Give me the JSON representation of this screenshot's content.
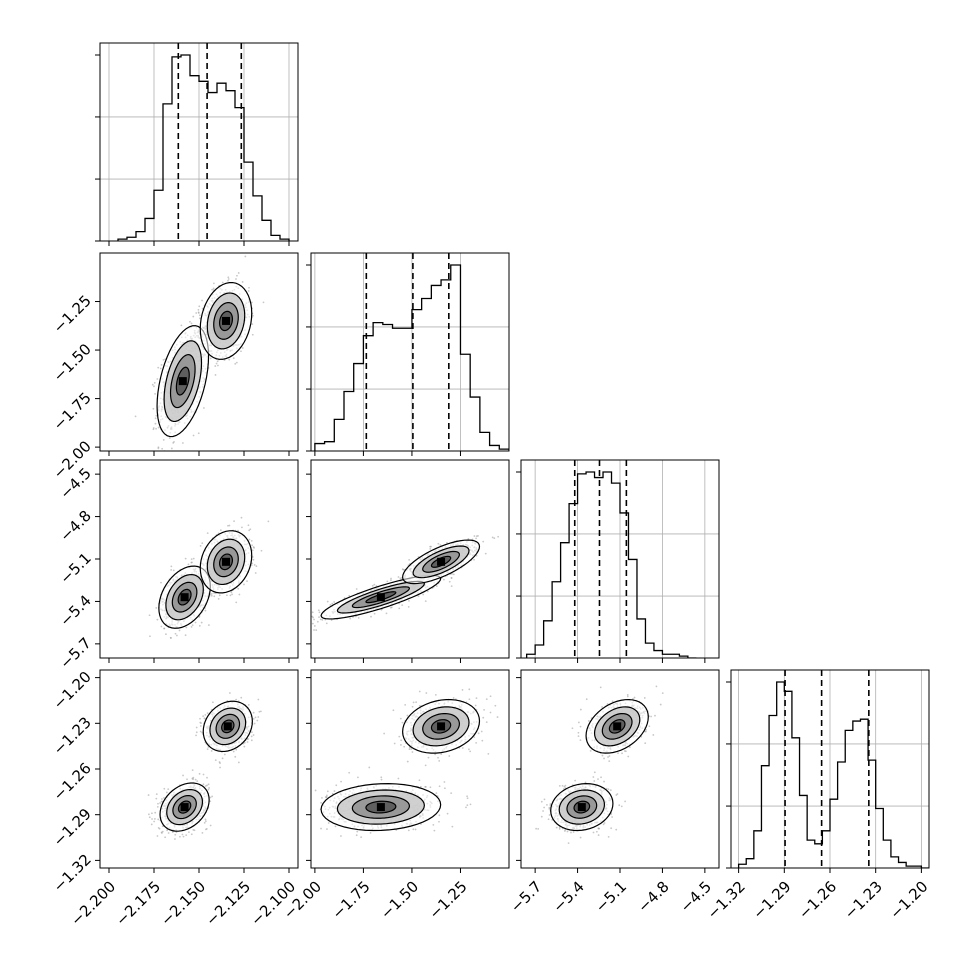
{
  "chart_data": {
    "type": "corner",
    "title": "",
    "grid": true,
    "parameters": [
      {
        "key": "p0",
        "range": [
          -2.205,
          -2.095
        ],
        "ticks": [
          -2.2,
          -2.175,
          -2.15,
          -2.125,
          -2.1
        ],
        "tick_labels": [
          "−2.200",
          "−2.175",
          "−2.150",
          "−2.125",
          "−2.100"
        ],
        "quantiles": [
          -2.1615,
          -2.1455,
          -2.1265
        ],
        "hist_edges": [
          -2.195,
          -2.19,
          -2.185,
          -2.18,
          -2.175,
          -2.17,
          -2.165,
          -2.16,
          -2.155,
          -2.15,
          -2.145,
          -2.14,
          -2.135,
          -2.13,
          -2.125,
          -2.12,
          -2.115,
          -2.11,
          -2.105,
          -2.1
        ],
        "hist_counts": [
          0.01,
          0.02,
          0.05,
          0.12,
          0.27,
          0.73,
          0.98,
          0.99,
          0.88,
          0.85,
          0.79,
          0.84,
          0.8,
          0.71,
          0.42,
          0.24,
          0.11,
          0.03,
          0.01
        ]
      },
      {
        "key": "p1",
        "range": [
          -2.02,
          -1.0
        ],
        "ticks": [
          -2.0,
          -1.75,
          -1.5,
          -1.25
        ],
        "tick_labels": [
          "−2.00",
          "−1.75",
          "−1.50",
          "−1.25"
        ],
        "quantiles": [
          -1.735,
          -1.495,
          -1.31
        ],
        "hist_edges": [
          -2.0,
          -1.95,
          -1.9,
          -1.85,
          -1.8,
          -1.75,
          -1.7,
          -1.65,
          -1.6,
          -1.55,
          -1.5,
          -1.45,
          -1.4,
          -1.35,
          -1.3,
          -1.25,
          -1.2,
          -1.15,
          -1.1,
          -1.05,
          -1.0
        ],
        "hist_counts": [
          0.04,
          0.05,
          0.17,
          0.32,
          0.47,
          0.62,
          0.69,
          0.68,
          0.66,
          0.66,
          0.76,
          0.82,
          0.89,
          0.92,
          1.0,
          0.52,
          0.29,
          0.1,
          0.03,
          0.01
        ]
      },
      {
        "key": "p2",
        "range": [
          -5.8,
          -4.4
        ],
        "ticks": [
          -5.7,
          -5.4,
          -5.1,
          -4.8,
          -4.5
        ],
        "tick_labels": [
          "−5.7",
          "−5.4",
          "−5.1",
          "−4.8",
          "−4.5"
        ],
        "quantiles": [
          -5.42,
          -5.245,
          -5.055
        ],
        "hist_edges": [
          -5.76,
          -5.7,
          -5.64,
          -5.58,
          -5.52,
          -5.46,
          -5.4,
          -5.34,
          -5.28,
          -5.22,
          -5.16,
          -5.1,
          -5.04,
          -4.98,
          -4.92,
          -4.86,
          -4.8,
          -4.74,
          -4.68,
          -4.62,
          -4.56
        ],
        "hist_counts": [
          0.02,
          0.07,
          0.2,
          0.41,
          0.62,
          0.83,
          0.99,
          1.0,
          0.97,
          1.0,
          0.94,
          0.78,
          0.53,
          0.21,
          0.08,
          0.04,
          0.02,
          0.02,
          0.01,
          0.0
        ]
      },
      {
        "key": "p3",
        "range": [
          -1.325,
          -1.195
        ],
        "ticks": [
          -1.32,
          -1.29,
          -1.26,
          -1.23,
          -1.2
        ],
        "tick_labels": [
          "−1.32",
          "−1.29",
          "−1.26",
          "−1.23",
          "−1.20"
        ],
        "quantiles": [
          -1.2895,
          -1.2655,
          -1.2345
        ],
        "hist_edges": [
          -1.32,
          -1.315,
          -1.31,
          -1.305,
          -1.3,
          -1.295,
          -1.29,
          -1.285,
          -1.28,
          -1.275,
          -1.27,
          -1.265,
          -1.26,
          -1.255,
          -1.25,
          -1.245,
          -1.24,
          -1.235,
          -1.23,
          -1.225,
          -1.22,
          -1.215,
          -1.21,
          -1.205,
          -1.2,
          -1.195
        ],
        "hist_counts": [
          0.02,
          0.05,
          0.2,
          0.55,
          0.82,
          1.0,
          0.95,
          0.7,
          0.39,
          0.15,
          0.13,
          0.2,
          0.37,
          0.57,
          0.74,
          0.79,
          0.8,
          0.58,
          0.32,
          0.15,
          0.06,
          0.03,
          0.01,
          0.01,
          0.0
        ]
      }
    ],
    "pairs": [
      {
        "row": 1,
        "col": 0,
        "modes": [
          {
            "x": [
              -2.159,
              0.0065
            ],
            "y": [
              -1.66,
              0.13
            ],
            "rho": 0.45,
            "w": 0.55
          },
          {
            "x": [
              -2.135,
              0.0065
            ],
            "y": [
              -1.35,
              0.09
            ],
            "rho": 0.2,
            "w": 0.45
          }
        ]
      },
      {
        "row": 2,
        "col": 0,
        "modes": [
          {
            "x": [
              -2.158,
              0.0065
            ],
            "y": [
              -5.37,
              0.1
            ],
            "rho": 0.35,
            "w": 0.5
          },
          {
            "x": [
              -2.135,
              0.0065
            ],
            "y": [
              -5.12,
              0.1
            ],
            "rho": 0.2,
            "w": 0.5
          }
        ]
      },
      {
        "row": 2,
        "col": 1,
        "modes": [
          {
            "x": [
              -1.66,
              0.14
            ],
            "y": [
              -5.37,
              0.07
            ],
            "rho": 0.85,
            "w": 0.5
          },
          {
            "x": [
              -1.35,
              0.09
            ],
            "y": [
              -5.12,
              0.07
            ],
            "rho": 0.7,
            "w": 0.5
          }
        ]
      },
      {
        "row": 3,
        "col": 0,
        "modes": [
          {
            "x": [
              -2.158,
              0.0062
            ],
            "y": [
              -1.285,
              0.0072
            ],
            "rho": 0.3,
            "w": 0.55
          },
          {
            "x": [
              -2.134,
              0.0062
            ],
            "y": [
              -1.232,
              0.0075
            ],
            "rho": 0.2,
            "w": 0.45
          }
        ]
      },
      {
        "row": 3,
        "col": 1,
        "modes": [
          {
            "x": [
              -1.66,
              0.14
            ],
            "y": [
              -1.285,
              0.007
            ],
            "rho": 0.1,
            "w": 0.55
          },
          {
            "x": [
              -1.35,
              0.09
            ],
            "y": [
              -1.232,
              0.008
            ],
            "rho": 0.2,
            "w": 0.45
          }
        ]
      },
      {
        "row": 3,
        "col": 2,
        "modes": [
          {
            "x": [
              -5.37,
              0.1
            ],
            "y": [
              -1.285,
              0.007
            ],
            "rho": 0.15,
            "w": 0.55
          },
          {
            "x": [
              -5.12,
              0.1
            ],
            "y": [
              -1.232,
              0.008
            ],
            "rho": 0.35,
            "w": 0.45
          }
        ]
      }
    ]
  }
}
